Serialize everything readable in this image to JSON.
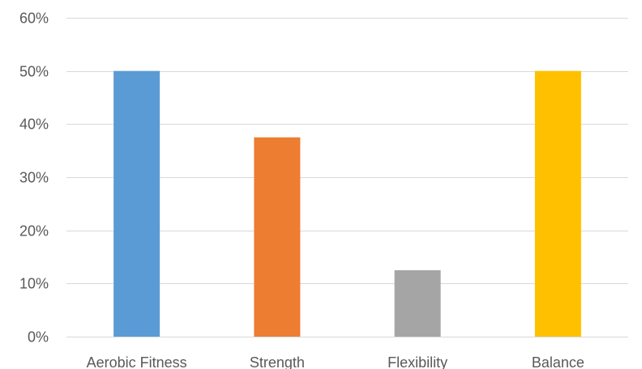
{
  "chart_data": {
    "type": "bar",
    "title": "",
    "xlabel": "",
    "ylabel": "",
    "categories": [
      "Aerobic Fitness",
      "Strength",
      "Flexibility",
      "Balance"
    ],
    "values": [
      0.5,
      0.375,
      0.125,
      0.5
    ],
    "colors": [
      "#5b9bd5",
      "#ed7d31",
      "#a5a5a5",
      "#ffc000"
    ],
    "ylim": [
      0,
      0.6
    ],
    "yticks": [
      0,
      0.1,
      0.2,
      0.3,
      0.4,
      0.5,
      0.6
    ],
    "ytick_labels": [
      "0%",
      "10%",
      "20%",
      "30%",
      "40%",
      "50%",
      "60%"
    ],
    "grid": true,
    "legend": "none"
  }
}
